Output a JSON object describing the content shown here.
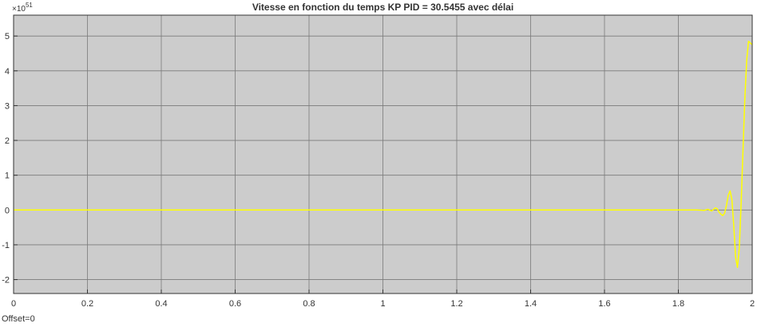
{
  "chart_data": {
    "type": "line",
    "title": "Vitesse en fonction du temps KP PID = 30.5455 avec délai",
    "xlabel": "",
    "ylabel": "",
    "xlim": [
      0,
      2
    ],
    "ylim": [
      -2.4,
      5.6
    ],
    "x_ticks": [
      "0",
      "0.2",
      "0.4",
      "0.6",
      "0.8",
      "1",
      "1.2",
      "1.4",
      "1.6",
      "1.8",
      "2"
    ],
    "y_ticks": [
      "-2",
      "-1",
      "0",
      "1",
      "2",
      "3",
      "4",
      "5"
    ],
    "y_exponent_multiplier": "×10",
    "y_exponent_power": "51",
    "grid": true,
    "background": "#cccccc",
    "line_color": "#ffff00",
    "series": [
      {
        "x": [
          0,
          1.85,
          1.87,
          1.88,
          1.89,
          1.9,
          1.905,
          1.91,
          1.915,
          1.92,
          1.925,
          1.93,
          1.935,
          1.94,
          1.945,
          1.95,
          1.955,
          1.96,
          1.965,
          1.97,
          1.975,
          1.98,
          1.985,
          1.99,
          1.995,
          2.0
        ],
        "y": [
          0,
          0,
          -0.01,
          0.02,
          -0.03,
          0.06,
          0.04,
          -0.06,
          -0.12,
          -0.16,
          -0.1,
          0.12,
          0.42,
          0.55,
          0.3,
          -0.45,
          -1.35,
          -1.65,
          -1.1,
          0.2,
          1.7,
          3.2,
          4.3,
          4.85,
          4.8,
          4.75
        ]
      }
    ]
  },
  "footer": {
    "offset_text": "Offset=0"
  }
}
